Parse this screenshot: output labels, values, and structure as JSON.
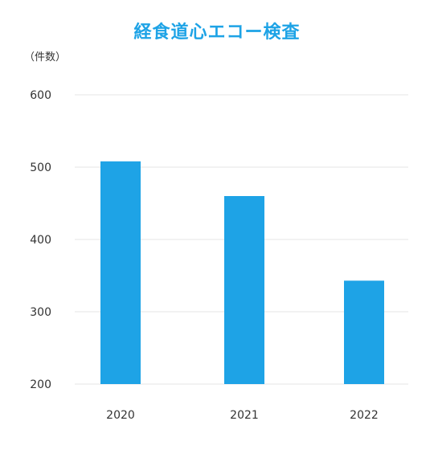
{
  "chart_data": {
    "type": "bar",
    "title": "経食道心エコー検査",
    "ylabel": "（件数）",
    "xlabel": "",
    "categories": [
      "2020",
      "2021",
      "2022"
    ],
    "values": [
      508,
      460,
      343
    ],
    "ylim": [
      200,
      600
    ],
    "yticks": [
      "600",
      "500",
      "400",
      "300",
      "200"
    ],
    "grid": true,
    "bar_color": "#1ea3e6",
    "title_color": "#1ea3e6",
    "grid_color": "#e6e6e6"
  }
}
